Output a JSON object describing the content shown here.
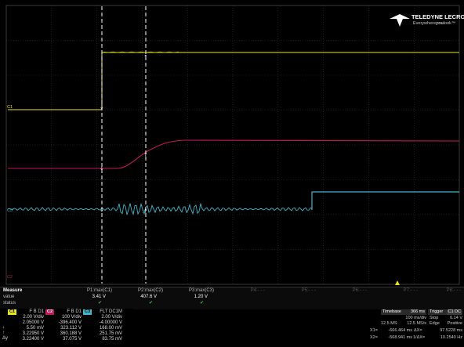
{
  "logo": {
    "brand": "TELEDYNE LECROY",
    "tagline_prefix": "Everywhere",
    "tagline_emph": "you",
    "tagline_suffix": "look"
  },
  "channel_markers": {
    "c1": "C1",
    "c2": "C2",
    "c3": "C3",
    "c4": "C4"
  },
  "colors": {
    "c1": "#e9e21f",
    "c2": "#c2185b",
    "c3": "#3fb6c9",
    "grid": "#3a3a3a",
    "cursor": "#ffffff"
  },
  "measure": {
    "header": "Measure",
    "rows": [
      "value",
      "status"
    ],
    "params": [
      {
        "name": "P1:max(C1)",
        "value": "3.41 V",
        "status": "✔"
      },
      {
        "name": "P2:max(C2)",
        "value": "407.6 V",
        "status": "✔"
      },
      {
        "name": "P3:max(C3)",
        "value": "1.20 V",
        "status": "✔"
      },
      {
        "name": "P4:- - -",
        "value": "",
        "status": ""
      },
      {
        "name": "P5:- - -",
        "value": "",
        "status": ""
      },
      {
        "name": "P6:- - -",
        "value": "",
        "status": ""
      },
      {
        "name": "P7:- - -",
        "value": "",
        "status": ""
      },
      {
        "name": "P8:- - -",
        "value": "",
        "status": ""
      }
    ]
  },
  "channels": [
    {
      "tag": "C1",
      "mode": "F B D1",
      "vdiv": "2.00 V/div",
      "offset": "2.05000 V",
      "x1": "5.50 mV",
      "x2": "3.22950 V",
      "dy": "3.22400 V"
    },
    {
      "tag": "C2",
      "mode": "F B D1",
      "vdiv": "100 V/div",
      "offset": "-396.400 V",
      "x1": "323.112 V",
      "x2": "360.188 V",
      "dy": "37.075 V"
    },
    {
      "tag": "C3",
      "mode": "FLT DC1M",
      "vdiv": "2.00 V/div",
      "offset": "-4.00000 V",
      "x1": "168.00 mV",
      "x2": "251.75 mV",
      "dy": "83.75 mV"
    }
  ],
  "row_symbols": {
    "x1": "↓",
    "x2": "↑",
    "dy": "Δy"
  },
  "timebase": {
    "label": "Timebase",
    "value": "366 ms",
    "tdiv": "100 ms/div",
    "samples": "12.5 MS",
    "rate": "12.5 MS/s"
  },
  "trigger": {
    "label": "Trigger",
    "chan": "C1 DC",
    "mode": "Stop",
    "level": "6.14 V",
    "type": "Edge",
    "slope": "Positive"
  },
  "cursors": {
    "x1_label": "X1=",
    "x1": "-666.464 ms",
    "dx_label": "ΔX=",
    "dx": "97.5228 ms",
    "x2_label": "X2=",
    "x2": "-568.941 ms",
    "inv_label": "1/ΔX=",
    "inv": "10.2540 Hz"
  }
}
